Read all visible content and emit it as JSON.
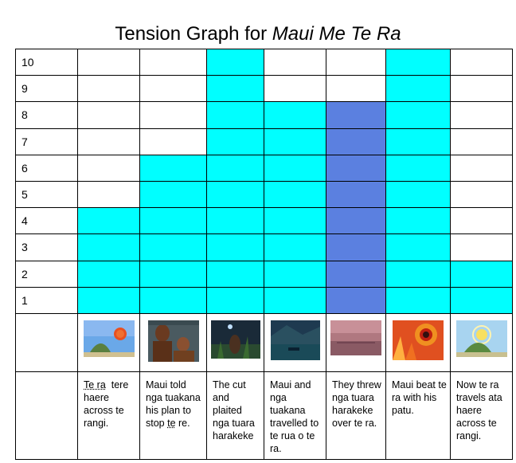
{
  "title": {
    "prefix": "Tension Graph for ",
    "italic": "Maui Me Te Ra"
  },
  "y_labels": [
    "10",
    "9",
    "8",
    "7",
    "6",
    "5",
    "4",
    "3",
    "2",
    "1"
  ],
  "colors": {
    "cyan": "#00ffff",
    "blue": "#5b80e0",
    "border": "#000000"
  },
  "chart_data": {
    "type": "bar",
    "categories": [
      "Te ra tere haere across te rangi.",
      "Maui told nga tuakana his plan to stop te re.",
      "The cut and plaited nga tuara harakeke",
      "Maui and nga tuakana travelled to te rua o te ra.",
      "They threw nga tuara harakeke over te ra.",
      "Maui beat te ra with his patu.",
      "Now te ra travels ata haere across te rangi."
    ],
    "values": [
      4,
      6,
      10,
      8,
      8,
      10,
      2
    ],
    "bar_colors": [
      "#00ffff",
      "#00ffff",
      "#00ffff",
      "#00ffff",
      "#5b80e0",
      "#00ffff",
      "#00ffff"
    ],
    "ylim": [
      0,
      10
    ]
  },
  "scenes": [
    {
      "image": "sun-over-island-image",
      "caption_a": "Te ra",
      "caption_b": "  tere haere across te rangi."
    },
    {
      "image": "maui-and-brothers-image",
      "caption_a": "Maui told nga tuakana his plan to stop ",
      "caption_b": "te",
      "caption_c": " re."
    },
    {
      "image": "cutting-flax-image",
      "caption_a": "The cut and plaited nga tuara harakeke"
    },
    {
      "image": "travelling-to-sun-image",
      "caption_a": "Maui and nga tuakana travelled to te rua o te ra."
    },
    {
      "image": "throwing-ropes-image",
      "caption_a": "They threw nga tuara harakeke over te ra."
    },
    {
      "image": "beating-sun-image",
      "caption_a": "Maui beat te ra with his patu."
    },
    {
      "image": "sun-slow-image",
      "caption_a": "Now te ra travels ata haere across te rangi."
    }
  ]
}
